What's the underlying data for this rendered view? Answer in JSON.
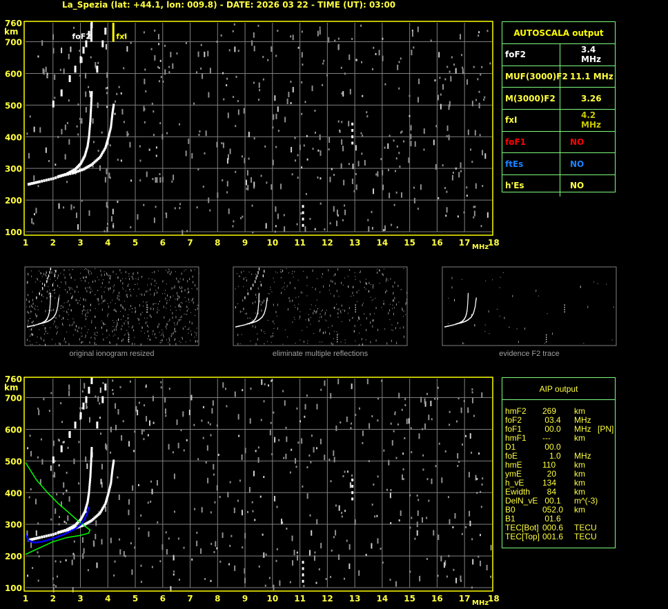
{
  "title": "La_Spezia (lat: +44.1, lon: 009.8) - DATE: 2026 03 22 - TIME (UT): 03:00",
  "colors": {
    "axis": "#ffff00",
    "grid": "#808080",
    "trace": "#ffffff",
    "table_border": "#80ff80",
    "foF1": "#ff0000",
    "ftEs": "#0080ff",
    "fxI_value": "#c8c800",
    "model_green": "#00ff00",
    "model_blue": "#0000ff"
  },
  "chart_data": [
    {
      "type": "scatter",
      "name_on_plot": "",
      "xlabel": "MHz",
      "ylabel": "km",
      "xlim": [
        1,
        18
      ],
      "ylim": [
        100,
        760
      ],
      "x_ticks": [
        "1",
        "2",
        "3",
        "4",
        "5",
        "6",
        "7",
        "8",
        "9",
        "10",
        "11",
        "12",
        "13",
        "14",
        "15",
        "16",
        "17",
        "18"
      ],
      "y_ticks": [
        "100",
        "200",
        "300",
        "400",
        "500",
        "600",
        "700",
        "760"
      ],
      "grid": true,
      "markers": [
        {
          "label": "foF2",
          "freq": 3.4,
          "color": "#ffffff"
        },
        {
          "label": "fxI",
          "freq": 4.2,
          "color": "#ffff00"
        }
      ],
      "series": [
        {
          "trace": "O",
          "points": [
            [
              1.1,
              250
            ],
            [
              1.5,
              258
            ],
            [
              2.0,
              268
            ],
            [
              2.5,
              283
            ],
            [
              2.8,
              297
            ],
            [
              3.0,
              315
            ],
            [
              3.15,
              340
            ],
            [
              3.25,
              370
            ],
            [
              3.3,
              400
            ],
            [
              3.35,
              450
            ],
            [
              3.38,
              500
            ],
            [
              3.4,
              540
            ]
          ]
        },
        {
          "trace": "X",
          "points": [
            [
              2.2,
              275
            ],
            [
              2.7,
              285
            ],
            [
              3.1,
              297
            ],
            [
              3.4,
              312
            ],
            [
              3.7,
              335
            ],
            [
              3.9,
              365
            ],
            [
              4.0,
              395
            ],
            [
              4.1,
              430
            ],
            [
              4.15,
              470
            ],
            [
              4.2,
              500
            ]
          ]
        },
        {
          "trace": "multiple",
          "points": [
            [
              2.0,
              510
            ],
            [
              2.3,
              545
            ],
            [
              2.6,
              590
            ],
            [
              2.8,
              620
            ],
            [
              3.0,
              650
            ],
            [
              3.1,
              680
            ],
            [
              3.2,
              700
            ],
            [
              3.3,
              730
            ],
            [
              3.4,
              760
            ],
            [
              3.6,
              620
            ],
            [
              3.8,
              700
            ],
            [
              3.9,
              740
            ]
          ]
        },
        {
          "trace": "spread",
          "points": [
            [
              11.1,
              120
            ],
            [
              11.1,
              140
            ],
            [
              11.1,
              160
            ],
            [
              11.1,
              180
            ],
            [
              12.9,
              380
            ],
            [
              12.9,
              400
            ],
            [
              12.9,
              420
            ],
            [
              12.9,
              440
            ]
          ]
        }
      ]
    },
    {
      "type": "line",
      "xlim": [
        1,
        18
      ],
      "ylim": [
        100,
        760
      ],
      "series": [
        {
          "model": "green",
          "points": [
            [
              1.0,
              495
            ],
            [
              1.4,
              440
            ],
            [
              1.8,
              400
            ],
            [
              2.2,
              365
            ],
            [
              2.6,
              335
            ],
            [
              2.9,
              312
            ],
            [
              3.2,
              292
            ],
            [
              3.35,
              282
            ],
            [
              3.3,
              272
            ],
            [
              3.0,
              265
            ],
            [
              2.5,
              258
            ],
            [
              2.0,
              245
            ],
            [
              1.5,
              225
            ],
            [
              1.0,
              205
            ]
          ]
        },
        {
          "model": "blue",
          "points": [
            [
              1.0,
              270
            ],
            [
              1.1,
              250
            ],
            [
              1.3,
              242
            ],
            [
              1.6,
              245
            ],
            [
              2.0,
              255
            ],
            [
              2.4,
              268
            ],
            [
              2.8,
              285
            ],
            [
              3.0,
              298
            ],
            [
              3.15,
              315
            ],
            [
              3.25,
              335
            ],
            [
              3.3,
              355
            ]
          ]
        }
      ]
    }
  ],
  "thumbnails": [
    {
      "caption": "original ionogram resized"
    },
    {
      "caption": "eliminate multiple reflections"
    },
    {
      "caption": "evidence F2 trace"
    }
  ],
  "autoscala": {
    "header": "AUTOSCALA output",
    "rows": [
      {
        "key": "foF2",
        "value": "3.4 MHz",
        "color": "#ffffff"
      },
      {
        "key": "MUF(3000)F2",
        "value": "11.1 MHz",
        "color": "#ffff40"
      },
      {
        "key": "M(3000)F2",
        "value": "3.26",
        "color": "#ffff40"
      },
      {
        "key": "fxI",
        "value": "4.2 MHz",
        "color": "#ffff40"
      },
      {
        "key": "foF1",
        "value": "NO",
        "color": "#ff0000"
      },
      {
        "key": "ftEs",
        "value": "NO",
        "color": "#1a80ff"
      },
      {
        "key": "h'Es",
        "value": "NO",
        "color": "#ffff40"
      }
    ]
  },
  "aip": {
    "header": "AIP output",
    "rows": [
      {
        "name": "hmF2",
        "value": "269",
        "unit": "km",
        "flag": ""
      },
      {
        "name": "foF2",
        "value": " 03.4",
        "unit": "MHz",
        "flag": ""
      },
      {
        "name": "foF1",
        "value": " 00.0",
        "unit": "MHz",
        "flag": "[PN]"
      },
      {
        "name": "hmF1",
        "value": "---",
        "unit": "km",
        "flag": ""
      },
      {
        "name": "D1",
        "value": " 00.0",
        "unit": "",
        "flag": ""
      },
      {
        "name": "foE",
        "value": "   1.0",
        "unit": "MHz",
        "flag": ""
      },
      {
        "name": "hmE",
        "value": "110",
        "unit": "km",
        "flag": ""
      },
      {
        "name": "ymE",
        "value": "  20",
        "unit": "km",
        "flag": ""
      },
      {
        "name": "h_vE",
        "value": "134",
        "unit": "km",
        "flag": ""
      },
      {
        "name": "Ewidth",
        "value": "  84",
        "unit": "km",
        "flag": ""
      },
      {
        "name": "DelN_vE",
        "value": " 00.1",
        "unit": "m^(-3)",
        "flag": ""
      },
      {
        "name": "B0",
        "value": "052.0",
        "unit": "km",
        "flag": ""
      },
      {
        "name": "B1",
        "value": " 01.6",
        "unit": "",
        "flag": ""
      },
      {
        "name": "TEC[Bot]",
        "value": "000.6",
        "unit": "TECU",
        "flag": ""
      },
      {
        "name": "TEC[Top]",
        "value": "001.6",
        "unit": "TECU",
        "flag": ""
      }
    ]
  }
}
